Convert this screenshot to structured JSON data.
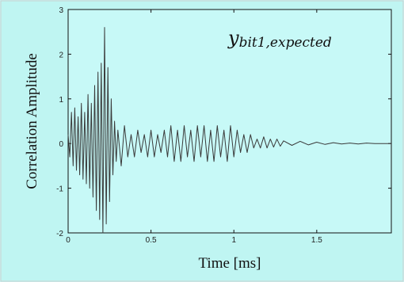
{
  "chart_data": {
    "type": "line",
    "title": "",
    "xlabel": "Time [ms]",
    "ylabel": "Correlation Amplitude",
    "xlim": [
      0,
      1.95
    ],
    "ylim": [
      -2,
      3
    ],
    "xticks": [
      "0",
      "0.5",
      "1",
      "1.5"
    ],
    "yticks": [
      "-2",
      "-1",
      "0",
      "1",
      "2",
      "3"
    ],
    "annotation": {
      "main": "y",
      "subscript": "bit1,expected"
    },
    "grid": false,
    "series": [
      {
        "x": [
          0.0,
          0.01,
          0.02,
          0.03,
          0.04,
          0.05,
          0.06,
          0.07,
          0.08,
          0.09,
          0.1,
          0.11,
          0.12,
          0.13,
          0.14,
          0.15,
          0.16,
          0.17,
          0.18,
          0.19,
          0.2,
          0.21,
          0.22,
          0.23,
          0.24,
          0.25,
          0.26,
          0.27,
          0.28,
          0.29,
          0.3,
          0.32,
          0.34,
          0.36,
          0.38,
          0.4,
          0.42,
          0.44,
          0.46,
          0.48,
          0.5,
          0.52,
          0.54,
          0.56,
          0.58,
          0.6,
          0.62,
          0.64,
          0.66,
          0.68,
          0.7,
          0.72,
          0.74,
          0.76,
          0.78,
          0.8,
          0.82,
          0.84,
          0.86,
          0.88,
          0.9,
          0.92,
          0.94,
          0.96,
          0.98,
          1.0,
          1.02,
          1.04,
          1.06,
          1.08,
          1.1,
          1.12,
          1.14,
          1.16,
          1.18,
          1.2,
          1.22,
          1.24,
          1.26,
          1.28,
          1.3,
          1.35,
          1.4,
          1.45,
          1.5,
          1.55,
          1.6,
          1.65,
          1.7,
          1.75,
          1.8,
          1.85,
          1.9,
          1.95
        ],
        "y": [
          0.2,
          -0.3,
          0.7,
          -0.5,
          0.8,
          -0.6,
          0.6,
          -0.7,
          0.9,
          -0.8,
          0.7,
          -0.9,
          1.1,
          -1.0,
          0.9,
          -1.2,
          1.3,
          -1.5,
          1.6,
          -1.7,
          1.8,
          -2.0,
          2.6,
          -1.8,
          1.7,
          -1.3,
          1.0,
          -0.7,
          0.5,
          -0.4,
          0.3,
          -0.5,
          0.4,
          -0.3,
          0.2,
          -0.3,
          0.3,
          -0.2,
          0.2,
          -0.3,
          0.3,
          -0.3,
          0.2,
          -0.2,
          0.3,
          -0.3,
          0.4,
          -0.4,
          0.3,
          -0.4,
          0.4,
          -0.3,
          0.3,
          -0.4,
          0.4,
          -0.3,
          0.4,
          -0.4,
          0.3,
          -0.4,
          0.4,
          -0.3,
          0.3,
          -0.4,
          0.4,
          -0.3,
          0.3,
          -0.2,
          0.2,
          -0.2,
          0.2,
          -0.1,
          0.1,
          -0.1,
          0.15,
          -0.1,
          0.1,
          -0.08,
          0.1,
          -0.06,
          0.06,
          -0.04,
          0.05,
          -0.03,
          0.03,
          -0.02,
          0.02,
          -0.01,
          0.01,
          -0.01,
          0.01,
          0.0,
          0.0,
          0.0
        ]
      }
    ]
  }
}
